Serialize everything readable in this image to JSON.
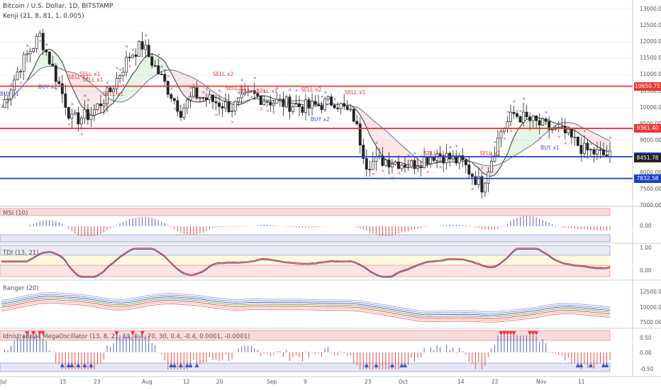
{
  "title": "Bitcoin / U.S. Dollar, 1D, BITSTAMP",
  "indicator_main": "Kenji (21, 8, 81, 1, 0.005)",
  "price_axis": {
    "ticks": [
      "13000.00",
      "12500.00",
      "12000.00",
      "11500.00",
      "11000.00",
      "10500.00",
      "10000.00",
      "9500.00",
      "9000.00",
      "8500.00",
      "8000.00",
      "7500.00",
      "7000.00"
    ],
    "range": [
      7000,
      13200
    ]
  },
  "price_tags": [
    {
      "label": "10650.75",
      "value": 10650.75,
      "color": "#e53935"
    },
    {
      "label": "9361.40",
      "value": 9361.4,
      "color": "#e53935"
    },
    {
      "label": "8495.68",
      "value": 8495.68,
      "color": "#1e3fc8"
    },
    {
      "label": "8451.78",
      "value": 8451.78,
      "color": "#222222"
    },
    {
      "label": "7832.58",
      "value": 7832.58,
      "color": "#1e3fc8"
    }
  ],
  "signals": [
    {
      "text": "SELL x1",
      "type": "sell"
    },
    {
      "text": "SELL x1",
      "type": "sell"
    },
    {
      "text": "SELL x1",
      "type": "sell"
    },
    {
      "text": "BUY x2",
      "type": "buy"
    },
    {
      "text": "SELL x1",
      "type": "sell"
    },
    {
      "text": "BUY x1",
      "type": "buy"
    },
    {
      "text": "SELL x2",
      "type": "sell"
    },
    {
      "text": "SELL x1",
      "type": "sell"
    },
    {
      "text": "SELL x2",
      "type": "sell"
    },
    {
      "text": "SELL x1",
      "type": "sell"
    },
    {
      "text": "SELL x2",
      "type": "sell"
    },
    {
      "text": "SELL x1",
      "type": "sell"
    },
    {
      "text": "BUY x2",
      "type": "buy"
    },
    {
      "text": "SELL x1",
      "type": "sell"
    },
    {
      "text": "SELL x1",
      "type": "sell"
    },
    {
      "text": "BUY x1",
      "type": "buy"
    }
  ],
  "panels": {
    "msi": {
      "label": "MSI (10)",
      "ticks": [
        "0.00"
      ]
    },
    "tdi": {
      "label": "TDI (13, 21)",
      "ticks": [
        "1.00",
        "0.00"
      ]
    },
    "ranger": {
      "label": "Ranger (20)",
      "ticks": [
        "12500.00",
        "10000.00",
        "7500.00"
      ]
    },
    "mega": {
      "label": "Idnistrade24 MegaOscillator (13, 8, 21, 11, 0.4, 70, 30, 0.4, -0.4, 0.0001, -0.0001)",
      "ticks": [
        "0.50",
        "0.00",
        "-0.50"
      ]
    }
  },
  "time_axis": [
    "Jul",
    "15",
    "23",
    "Aug",
    "12",
    "20",
    "Sep",
    "9",
    "23",
    "Oct",
    "14",
    "22",
    "Nov",
    "11"
  ],
  "colors": {
    "up": "#ffffff",
    "down": "#222222",
    "sell": "#e53935",
    "buy": "#3f51b5",
    "resistance": "#e53935",
    "support": "#1e3fc8"
  }
}
